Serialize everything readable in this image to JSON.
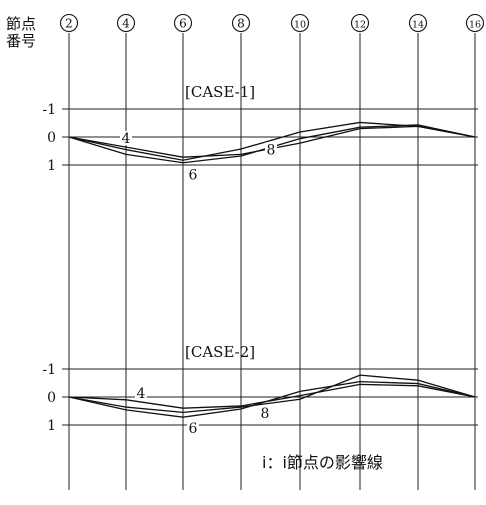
{
  "header_label_line1": "節点",
  "header_label_line2": "番号",
  "footer_note": "i：i節点の影響線",
  "nodes": [
    "2",
    "4",
    "6",
    "8",
    "10",
    "12",
    "14",
    "16"
  ],
  "chart_data": [
    {
      "type": "line",
      "title": "[CASE-1]",
      "x": [
        2,
        4,
        6,
        8,
        10,
        12,
        14,
        16
      ],
      "ytick_labels": [
        "-1",
        "0",
        "1"
      ],
      "ylim": [
        -1,
        1
      ],
      "series": [
        {
          "name": "4",
          "values": [
            0,
            0.36,
            0.72,
            0.62,
            0.22,
            -0.3,
            -0.38,
            0
          ]
        },
        {
          "name": "6",
          "values": [
            0,
            0.62,
            0.92,
            0.68,
            0.06,
            -0.35,
            -0.43,
            0
          ]
        },
        {
          "name": "8",
          "values": [
            0,
            0.45,
            0.83,
            0.43,
            -0.18,
            -0.52,
            -0.38,
            0
          ]
        }
      ]
    },
    {
      "type": "line",
      "title": "[CASE-2]",
      "x": [
        2,
        4,
        6,
        8,
        10,
        12,
        14,
        16
      ],
      "ytick_labels": [
        "-1",
        "0",
        "1"
      ],
      "ylim": [
        -1,
        1
      ],
      "series": [
        {
          "name": "4",
          "values": [
            0,
            0.1,
            0.4,
            0.32,
            -0.05,
            -0.45,
            -0.4,
            0
          ]
        },
        {
          "name": "6",
          "values": [
            0,
            0.46,
            0.72,
            0.43,
            -0.2,
            -0.55,
            -0.48,
            0
          ]
        },
        {
          "name": "8",
          "values": [
            0,
            0.36,
            0.55,
            0.36,
            0.08,
            -0.78,
            -0.6,
            0
          ]
        }
      ]
    }
  ],
  "line_labels": [
    {
      "panel": 0,
      "text": "4"
    },
    {
      "panel": 0,
      "text": "6"
    },
    {
      "panel": 0,
      "text": "8"
    },
    {
      "panel": 1,
      "text": "4"
    },
    {
      "panel": 1,
      "text": "6"
    },
    {
      "panel": 1,
      "text": "8"
    }
  ]
}
